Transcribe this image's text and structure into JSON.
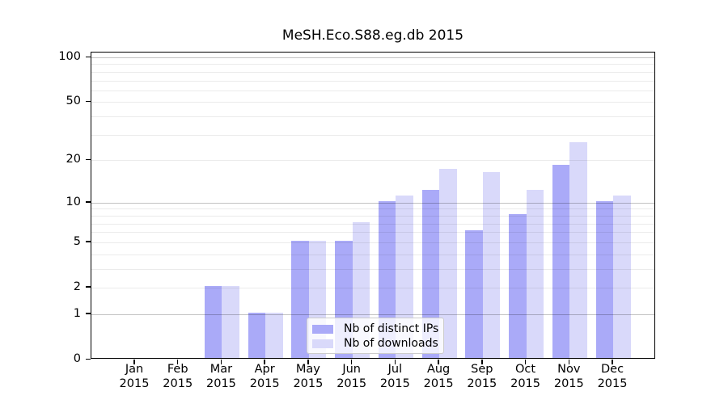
{
  "chart": {
    "title": "MeSH.Eco.S88.eg.db 2015"
  },
  "chart_data": {
    "type": "bar",
    "title": "MeSH.Eco.S88.eg.db 2015",
    "categories": [
      "Jan 2015",
      "Feb 2015",
      "Mar 2015",
      "Apr 2015",
      "May 2015",
      "Jun 2015",
      "Jul 2015",
      "Aug 2015",
      "Sep 2015",
      "Oct 2015",
      "Nov 2015",
      "Dec 2015"
    ],
    "series": [
      {
        "name": "Nb of distinct IPs",
        "color": "#aaaaf8",
        "values": [
          0,
          0,
          2,
          1,
          5,
          5,
          10,
          12,
          6,
          8,
          18,
          10
        ]
      },
      {
        "name": "Nb of downloads",
        "color": "#d9d9fa",
        "values": [
          0,
          0,
          2,
          1,
          5,
          7,
          11,
          17,
          16,
          12,
          26,
          11
        ]
      }
    ],
    "xlabel": "",
    "ylabel": "",
    "ylim": [
      0,
      100
    ],
    "y_scale": "log1p",
    "y_ticks": [
      0,
      1,
      2,
      5,
      10,
      20,
      50,
      100
    ],
    "y_major_gridlines": [
      1,
      10,
      100
    ],
    "y_minor_gridlines": [
      2,
      3,
      4,
      5,
      6,
      7,
      8,
      9,
      20,
      30,
      40,
      50,
      60,
      70,
      80,
      90
    ],
    "grid": "on",
    "legend_position": "lower center inside plot",
    "colors": {
      "major_grid": "#c2c2c2",
      "minor_grid": "#ececec",
      "axis": "#000000",
      "legend_border": "#cccccc"
    }
  }
}
